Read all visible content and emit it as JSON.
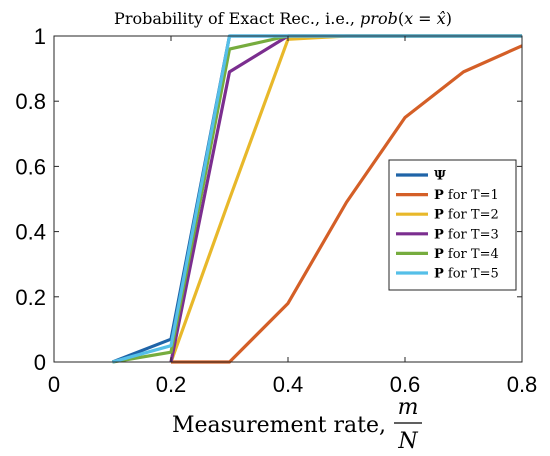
{
  "chart_data": {
    "type": "line",
    "title": "Probability of Exact Rec., i.e., prob(x = x̂)",
    "title_parts": {
      "prefix": "Probability of Exact Rec., i.e., ",
      "func": "prob",
      "open": "(",
      "x": "x",
      "eq": " = ",
      "xhat": "x̂",
      "close": ")"
    },
    "xlabel": "Measurement rate,",
    "xlabel_frac": {
      "numerator": "m",
      "denominator": "N"
    },
    "ylabel": "",
    "xlim": [
      0,
      0.8
    ],
    "ylim": [
      0,
      1
    ],
    "xticks": [
      0,
      0.2,
      0.4,
      0.6,
      0.8
    ],
    "xtick_labels": [
      "0",
      "0.2",
      "0.4",
      "0.6",
      "0.8"
    ],
    "yticks": [
      0,
      0.2,
      0.4,
      0.6,
      0.8,
      1
    ],
    "ytick_labels": [
      "0",
      "0.2",
      "0.4",
      "0.6",
      "0.8",
      "1"
    ],
    "grid": false,
    "legend_position": "right",
    "series": [
      {
        "name": "Ψ",
        "name_bold": "Ψ",
        "name_rest": "",
        "color": "#1f64a8",
        "x": [
          0.1,
          0.2,
          0.3,
          0.4,
          0.5,
          0.6,
          0.7,
          0.8
        ],
        "y": [
          0,
          0.07,
          1,
          1,
          1,
          1,
          1,
          1
        ]
      },
      {
        "name": "P for T=1",
        "name_bold": "P",
        "name_rest": " for T=1",
        "color": "#d45f27",
        "x": [
          0.2,
          0.3,
          0.4,
          0.5,
          0.6,
          0.7,
          0.8
        ],
        "y": [
          0,
          0,
          0.18,
          0.49,
          0.75,
          0.89,
          0.97
        ]
      },
      {
        "name": "P for T=2",
        "name_bold": "P",
        "name_rest": " for T=2",
        "color": "#e8b82a",
        "x": [
          0.2,
          0.3,
          0.4,
          0.5,
          0.6,
          0.7,
          0.8
        ],
        "y": [
          0,
          0.5,
          0.99,
          1,
          1,
          1,
          1
        ]
      },
      {
        "name": "P for T=3",
        "name_bold": "P",
        "name_rest": " for T=3",
        "color": "#7b2e8f",
        "x": [
          0.2,
          0.3,
          0.4,
          0.5,
          0.6,
          0.7,
          0.8
        ],
        "y": [
          0,
          0.89,
          1,
          1,
          1,
          1,
          1
        ]
      },
      {
        "name": "P for T=4",
        "name_bold": "P",
        "name_rest": " for T=4",
        "color": "#76ac3e",
        "x": [
          0.1,
          0.2,
          0.3,
          0.4,
          0.5,
          0.6,
          0.7,
          0.8
        ],
        "y": [
          0,
          0.03,
          0.96,
          1,
          1,
          1,
          1,
          1
        ]
      },
      {
        "name": "P for T=5",
        "name_bold": "P",
        "name_rest": " for T=5",
        "color": "#55bfe8",
        "x": [
          0.1,
          0.2,
          0.3,
          0.4,
          0.5,
          0.6,
          0.7,
          0.8
        ],
        "y": [
          0,
          0.05,
          1,
          1,
          1,
          1,
          1,
          1
        ]
      }
    ]
  }
}
